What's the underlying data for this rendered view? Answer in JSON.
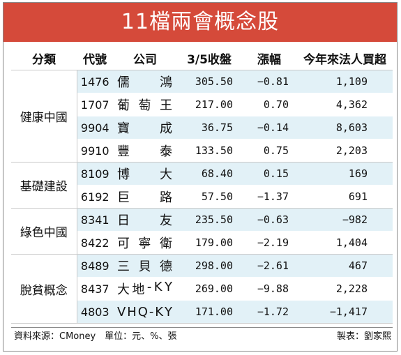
{
  "title": "11檔兩會概念股",
  "headers": [
    "分類",
    "代號",
    "公司",
    "3/5收盤",
    "漲幅",
    "今年來法人買超"
  ],
  "groups": [
    {
      "category": "健康中國",
      "rows": [
        {
          "code": "1476",
          "name": [
            "儒",
            "鴻"
          ],
          "close": "305.50",
          "change": "−0.81",
          "buy": "1,109"
        },
        {
          "code": "1707",
          "name": [
            "葡",
            "萄",
            "王"
          ],
          "close": "217.00",
          "change": "0.70",
          "buy": "4,362"
        },
        {
          "code": "9904",
          "name": [
            "寶",
            "成"
          ],
          "close": "36.75",
          "change": "−0.14",
          "buy": "8,603"
        },
        {
          "code": "9910",
          "name": [
            "豐",
            "泰"
          ],
          "close": "133.50",
          "change": "0.75",
          "buy": "2,203"
        }
      ]
    },
    {
      "category": "基礎建設",
      "rows": [
        {
          "code": "8109",
          "name": [
            "博",
            "大"
          ],
          "close": "68.40",
          "change": "0.15",
          "buy": "169"
        },
        {
          "code": "6192",
          "name": [
            "巨",
            "路"
          ],
          "close": "57.50",
          "change": "−1.37",
          "buy": "691"
        }
      ]
    },
    {
      "category": "綠色中國",
      "rows": [
        {
          "code": "8341",
          "name": [
            "日",
            "友"
          ],
          "close": "235.50",
          "change": "−0.63",
          "buy": "−982"
        },
        {
          "code": "8422",
          "name": [
            "可",
            "寧",
            "衛"
          ],
          "close": "179.00",
          "change": "−2.19",
          "buy": "1,404"
        }
      ]
    },
    {
      "category": "脫貧概念",
      "rows": [
        {
          "code": "8489",
          "name": [
            "三",
            "貝",
            "德"
          ],
          "close": "298.00",
          "change": "−2.61",
          "buy": "467"
        },
        {
          "code": "8437",
          "name": [
            "大",
            "地",
            "-",
            "K",
            "Y"
          ],
          "close": "269.00",
          "change": "−9.88",
          "buy": "2,228"
        },
        {
          "code": "4803",
          "name": [
            "V",
            "H",
            "Q",
            "-",
            "K",
            "Y"
          ],
          "close": "171.00",
          "change": "−1.72",
          "buy": "−1,417"
        }
      ]
    }
  ],
  "footer": {
    "source": "資料來源：CMoney　單位：元、%、張",
    "credit": "製表：劉家熙"
  }
}
